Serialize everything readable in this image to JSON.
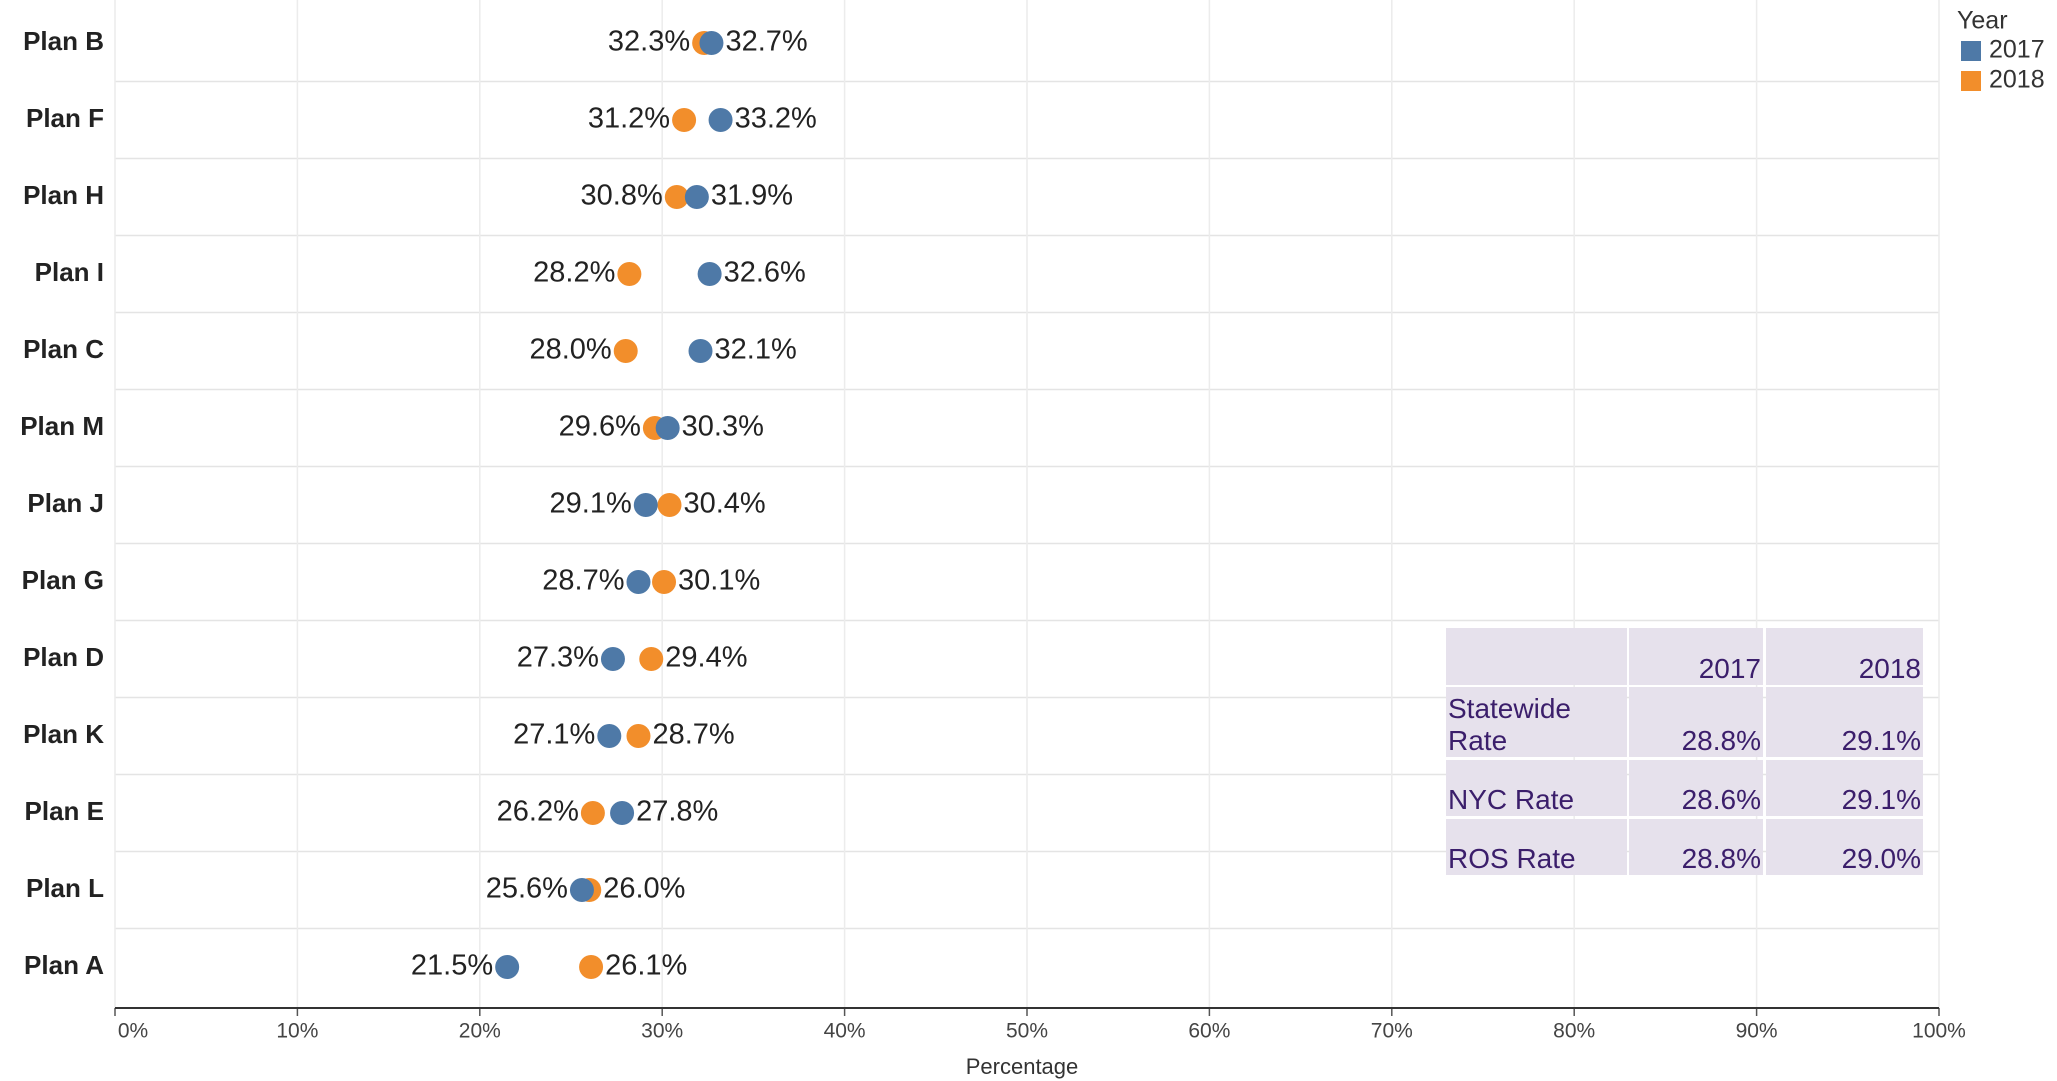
{
  "chart_data": {
    "type": "dot",
    "categories": [
      "Plan B",
      "Plan F",
      "Plan H",
      "Plan I",
      "Plan C",
      "Plan M",
      "Plan J",
      "Plan G",
      "Plan D",
      "Plan K",
      "Plan E",
      "Plan L",
      "Plan A"
    ],
    "series": [
      {
        "name": "2017",
        "color": "#4e79a7",
        "values": [
          32.7,
          33.2,
          31.9,
          32.6,
          32.1,
          30.3,
          29.1,
          28.7,
          27.3,
          27.1,
          27.8,
          25.6,
          21.5
        ],
        "value_labels": [
          "32.7%",
          "33.2%",
          "31.9%",
          "32.6%",
          "32.1%",
          "30.3%",
          "29.1%",
          "28.7%",
          "27.3%",
          "27.1%",
          "27.8%",
          "25.6%",
          "21.5%"
        ]
      },
      {
        "name": "2018",
        "color": "#f28e2b",
        "values": [
          32.3,
          31.2,
          30.8,
          28.2,
          28.0,
          29.6,
          30.4,
          30.1,
          29.4,
          28.7,
          26.2,
          26.0,
          26.1
        ],
        "value_labels": [
          "32.3%",
          "31.2%",
          "30.8%",
          "28.2%",
          "28.0%",
          "29.6%",
          "30.4%",
          "30.1%",
          "29.4%",
          "28.7%",
          "26.2%",
          "26.0%",
          "26.1%"
        ]
      }
    ],
    "xlabel": "Percentage",
    "xlim": [
      0,
      100
    ],
    "xticks": [
      {
        "value": 0,
        "label": "0%"
      },
      {
        "value": 10,
        "label": "10%"
      },
      {
        "value": 20,
        "label": "20%"
      },
      {
        "value": 30,
        "label": "30%"
      },
      {
        "value": 40,
        "label": "40%"
      },
      {
        "value": 50,
        "label": "50%"
      },
      {
        "value": 60,
        "label": "60%"
      },
      {
        "value": 70,
        "label": "70%"
      },
      {
        "value": 80,
        "label": "80%"
      },
      {
        "value": 90,
        "label": "90%"
      },
      {
        "value": 100,
        "label": "100%"
      }
    ],
    "grid": true,
    "legend_title": "Year",
    "legend": "upper right"
  },
  "table": {
    "header": [
      "2017",
      "2018"
    ],
    "rows": [
      [
        "Statewide Rate",
        "28.8%",
        "29.1%"
      ],
      [
        "NYC Rate",
        "28.6%",
        "29.1%"
      ],
      [
        "ROS Rate",
        "28.8%",
        "29.0%"
      ]
    ]
  }
}
